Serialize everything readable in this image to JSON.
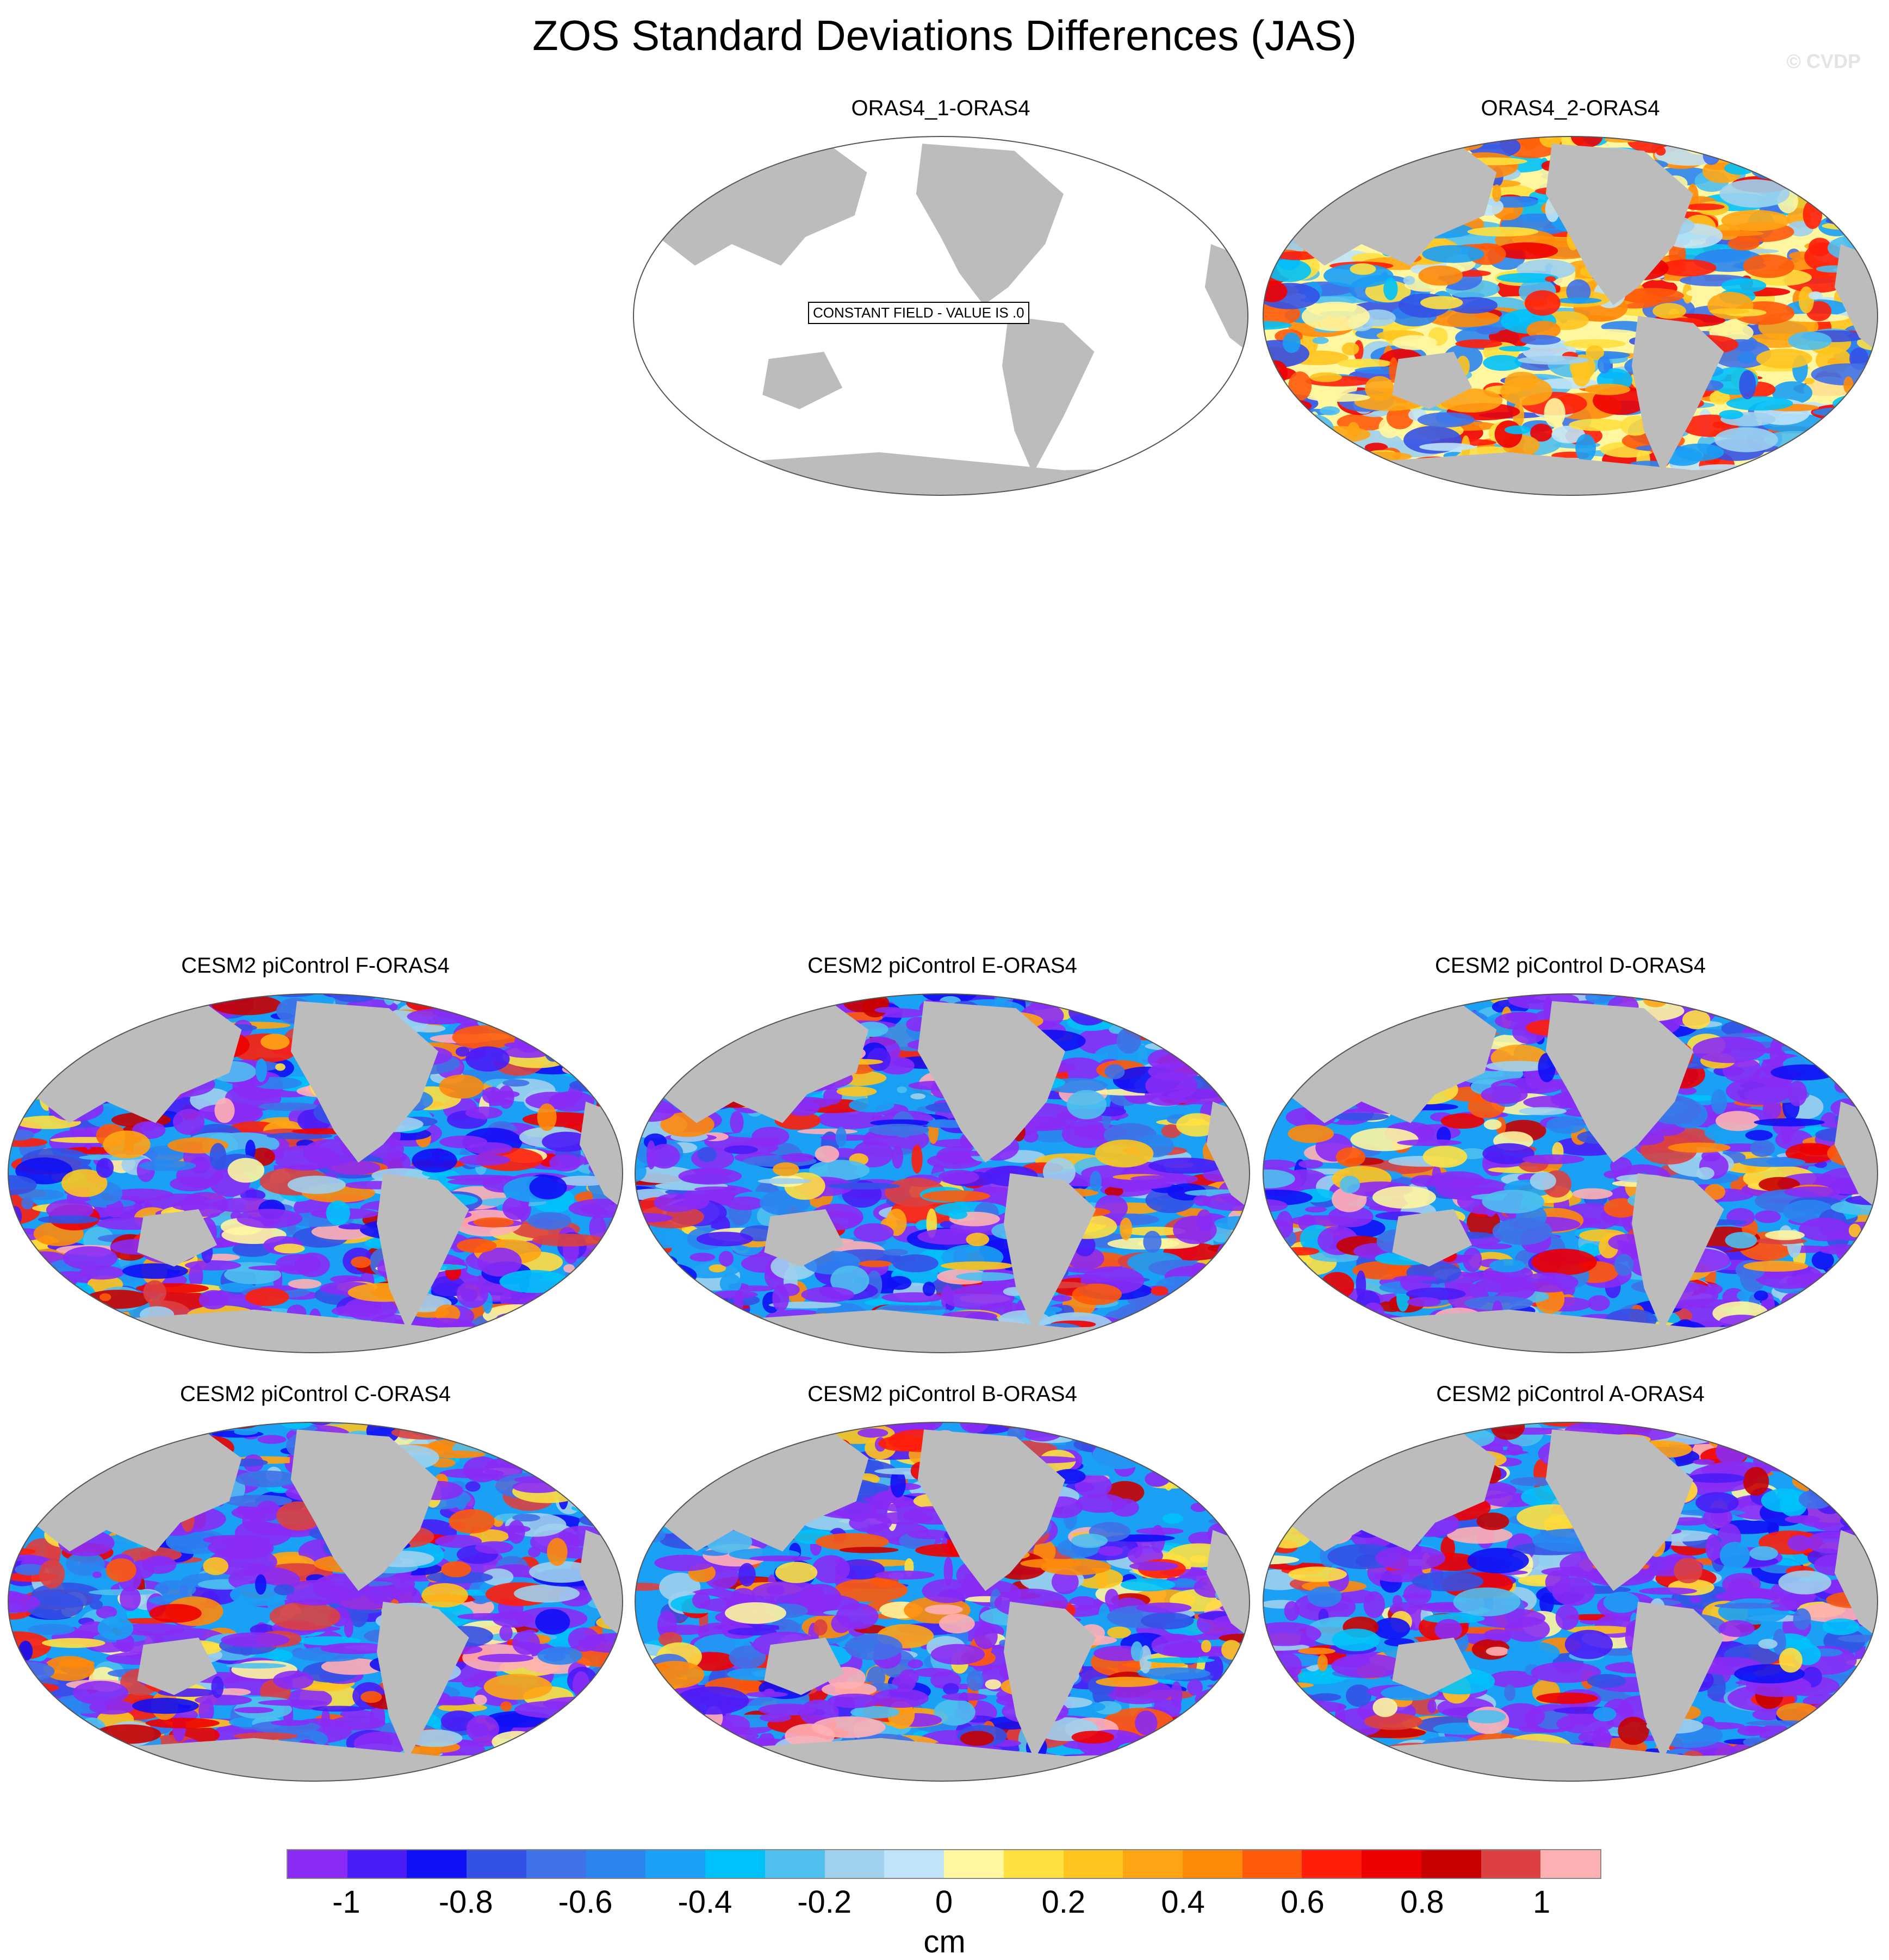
{
  "title": "ZOS Standard Deviations Differences (JAS)",
  "watermark": "© CVDP",
  "panels": [
    {
      "title": "ORAS4_1-ORAS4",
      "note": "CONSTANT FIELD - VALUE IS .0",
      "field": "constant"
    },
    {
      "title": "ORAS4_2-ORAS4",
      "note": "",
      "field": "mixed"
    },
    {
      "title": "CESM2 piControl F-ORAS4",
      "note": "",
      "field": "model"
    },
    {
      "title": "CESM2 piControl E-ORAS4",
      "note": "",
      "field": "model"
    },
    {
      "title": "CESM2 piControl D-ORAS4",
      "note": "",
      "field": "model"
    },
    {
      "title": "CESM2 piControl C-ORAS4",
      "note": "",
      "field": "model"
    },
    {
      "title": "CESM2 piControl B-ORAS4",
      "note": "",
      "field": "model"
    },
    {
      "title": "CESM2 piControl A-ORAS4",
      "note": "",
      "field": "model"
    }
  ],
  "colorbar": {
    "colors": [
      "#8a2bf5",
      "#4a1cf7",
      "#1010f5",
      "#3451e6",
      "#3f71e8",
      "#2b84f0",
      "#1aa0f5",
      "#00c2fa",
      "#4fbff0",
      "#9fd0ee",
      "#bfe3f7",
      "#fff6a0",
      "#ffe040",
      "#ffc41e",
      "#ffa514",
      "#ff8a0a",
      "#ff5a0a",
      "#ff1e0a",
      "#ee0000",
      "#c80000",
      "#dc4040",
      "#ffb0b4"
    ],
    "ticks": [
      "-1",
      "-0.8",
      "-0.6",
      "-0.4",
      "-0.2",
      "0",
      "0.2",
      "0.4",
      "0.6",
      "0.8",
      "1"
    ],
    "unit": "cm"
  },
  "map_colors": {
    "land": "#bcbcbc",
    "ocean_blank": "#ffffff",
    "border": "#555555"
  }
}
